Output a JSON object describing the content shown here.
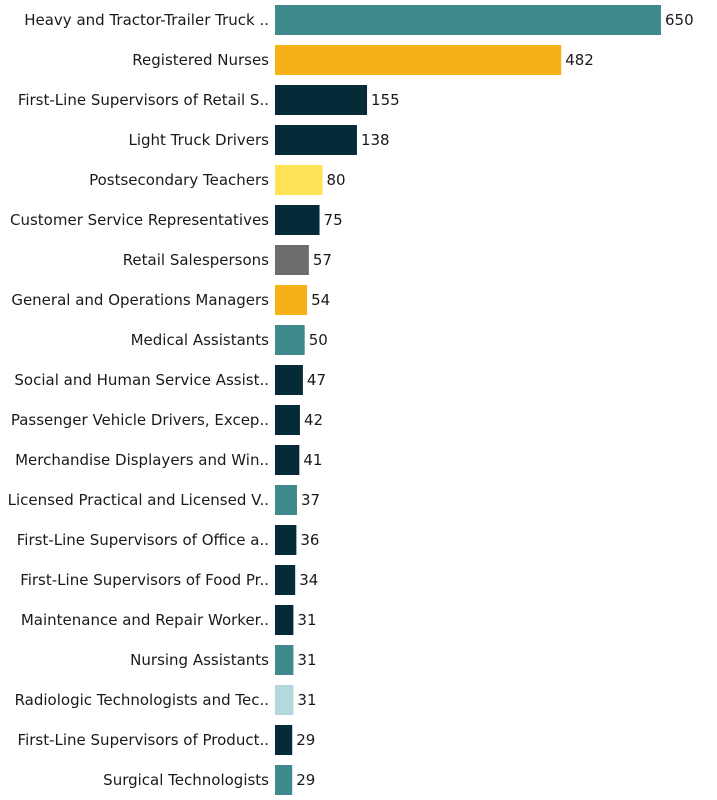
{
  "chart_data": {
    "type": "bar",
    "orientation": "horizontal",
    "title": "",
    "xlabel": "",
    "ylabel": "",
    "xlim": [
      0,
      650
    ],
    "grid": false,
    "categories": [
      "Heavy and Tractor-Trailer Truck ..",
      "Registered Nurses",
      "First-Line Supervisors of Retail S..",
      "Light Truck Drivers",
      "Postsecondary Teachers",
      "Customer Service Representatives",
      "Retail Salespersons",
      "General and Operations Managers",
      "Medical Assistants",
      "Social and Human Service Assist..",
      "Passenger Vehicle Drivers, Excep..",
      "Merchandise Displayers and Win..",
      "Licensed Practical and Licensed V..",
      "First-Line Supervisors of Office a..",
      "First-Line Supervisors of Food Pr..",
      "Maintenance and Repair Worker..",
      "Nursing Assistants",
      "Radiologic Technologists and Tec..",
      "First-Line Supervisors of Product..",
      "Surgical Technologists"
    ],
    "values": [
      650,
      482,
      155,
      138,
      80,
      75,
      57,
      54,
      50,
      47,
      42,
      41,
      37,
      36,
      34,
      31,
      31,
      31,
      29,
      29
    ],
    "colors": [
      "#3f8a8c",
      "#f5b117",
      "#062b38",
      "#062b38",
      "#ffe357",
      "#062b38",
      "#6d6d6d",
      "#f5b117",
      "#3f8a8c",
      "#062b38",
      "#062b38",
      "#062b38",
      "#3f8a8c",
      "#062b38",
      "#062b38",
      "#062b38",
      "#3f8a8c",
      "#b5d8df",
      "#062b38",
      "#3f8a8c"
    ]
  }
}
